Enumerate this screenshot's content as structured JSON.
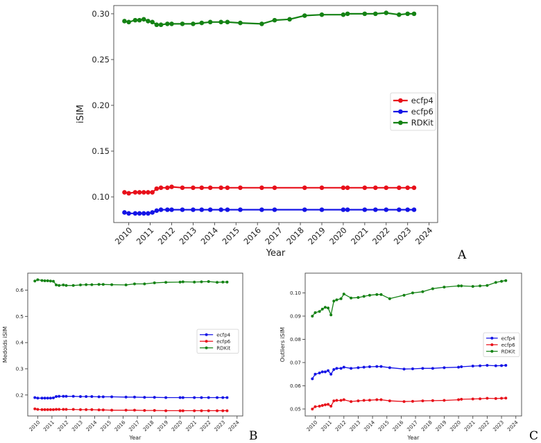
{
  "colors": {
    "red": "#e8101a",
    "blue": "#1414e6",
    "green": "#148214",
    "axis": "#444444"
  },
  "panel_letters": {
    "a": "A",
    "b": "B",
    "c": "C"
  },
  "chart_data": [
    {
      "id": "A",
      "type": "line",
      "xlabel": "Year",
      "ylabel": "iSIM",
      "xlim": [
        2009.3,
        2024.4
      ],
      "ylim": [
        0.072,
        0.309
      ],
      "xticks": [
        2010,
        2011,
        2012,
        2013,
        2014,
        2015,
        2016,
        2017,
        2018,
        2019,
        2020,
        2021,
        2022,
        2023,
        2024
      ],
      "xtick_labels": [
        "2010",
        "2011",
        "2012",
        "2013",
        "2014",
        "2015",
        "2016",
        "2017",
        "2018",
        "2019",
        "2020",
        "2021",
        "2022",
        "2023",
        "2024"
      ],
      "yticks": [
        0.1,
        0.15,
        0.2,
        0.25,
        0.3
      ],
      "ytick_labels": [
        "0.10",
        "0.15",
        "0.20",
        "0.25",
        "0.30"
      ],
      "legend": {
        "position": "right",
        "entries": [
          "ecfp4",
          "ecfp6",
          "RDKit"
        ]
      },
      "series": [
        {
          "name": "ecfp4",
          "color": "red",
          "x": [
            2009.8,
            2010.0,
            2010.3,
            2010.5,
            2010.7,
            2010.9,
            2011.1,
            2011.3,
            2011.5,
            2011.8,
            2012.0,
            2012.5,
            2013.0,
            2013.4,
            2013.8,
            2014.3,
            2014.6,
            2015.2,
            2016.2,
            2016.8,
            2018.2,
            2019.0,
            2020.0,
            2020.2,
            2021.0,
            2021.5,
            2022.0,
            2022.6,
            2023.0,
            2023.3
          ],
          "y": [
            0.105,
            0.104,
            0.105,
            0.105,
            0.105,
            0.105,
            0.105,
            0.109,
            0.11,
            0.11,
            0.111,
            0.11,
            0.11,
            0.11,
            0.11,
            0.11,
            0.11,
            0.11,
            0.11,
            0.11,
            0.11,
            0.11,
            0.11,
            0.11,
            0.11,
            0.11,
            0.11,
            0.11,
            0.11,
            0.11
          ]
        },
        {
          "name": "ecfp6",
          "color": "blue",
          "x": [
            2009.8,
            2010.0,
            2010.3,
            2010.5,
            2010.7,
            2010.9,
            2011.1,
            2011.3,
            2011.5,
            2011.8,
            2012.0,
            2012.5,
            2013.0,
            2013.4,
            2013.8,
            2014.3,
            2014.6,
            2015.2,
            2016.2,
            2016.8,
            2018.2,
            2019.0,
            2020.0,
            2020.2,
            2021.0,
            2021.5,
            2022.0,
            2022.6,
            2023.0,
            2023.3
          ],
          "y": [
            0.083,
            0.082,
            0.082,
            0.082,
            0.082,
            0.082,
            0.083,
            0.085,
            0.086,
            0.086,
            0.086,
            0.086,
            0.086,
            0.086,
            0.086,
            0.086,
            0.086,
            0.086,
            0.086,
            0.086,
            0.086,
            0.086,
            0.086,
            0.086,
            0.086,
            0.086,
            0.086,
            0.086,
            0.086,
            0.086
          ]
        },
        {
          "name": "RDKit",
          "color": "green",
          "x": [
            2009.8,
            2010.0,
            2010.3,
            2010.5,
            2010.7,
            2010.9,
            2011.1,
            2011.3,
            2011.5,
            2011.8,
            2012.0,
            2012.5,
            2013.0,
            2013.4,
            2013.8,
            2014.3,
            2014.6,
            2015.2,
            2016.2,
            2016.8,
            2017.5,
            2018.2,
            2019.0,
            2020.0,
            2020.2,
            2021.0,
            2021.5,
            2022.0,
            2022.6,
            2023.0,
            2023.3
          ],
          "y": [
            0.292,
            0.291,
            0.293,
            0.293,
            0.294,
            0.292,
            0.291,
            0.288,
            0.288,
            0.289,
            0.289,
            0.289,
            0.289,
            0.29,
            0.291,
            0.291,
            0.291,
            0.29,
            0.289,
            0.293,
            0.294,
            0.298,
            0.299,
            0.299,
            0.3,
            0.3,
            0.3,
            0.301,
            0.299,
            0.3,
            0.3
          ]
        }
      ]
    },
    {
      "id": "B",
      "type": "line",
      "xlabel": "Year",
      "ylabel": "Medoids iSIM",
      "xlim": [
        2009.3,
        2024.4
      ],
      "ylim": [
        0.12,
        0.665
      ],
      "xticks": [
        2010,
        2011,
        2012,
        2013,
        2014,
        2015,
        2016,
        2017,
        2018,
        2019,
        2020,
        2021,
        2022,
        2023,
        2024
      ],
      "xtick_labels": [
        "2010",
        "2011",
        "2012",
        "2013",
        "2014",
        "2015",
        "2016",
        "2017",
        "2018",
        "2019",
        "2020",
        "2021",
        "2022",
        "2023",
        "2024"
      ],
      "yticks": [
        0.2,
        0.3,
        0.4,
        0.5,
        0.6
      ],
      "ytick_labels": [
        "0.2",
        "0.3",
        "0.4",
        "0.5",
        "0.6"
      ],
      "legend": {
        "position": "right",
        "entries": [
          "ecfp4",
          "ecfp6",
          "RDKit"
        ]
      },
      "series": [
        {
          "name": "ecfp4",
          "color": "blue",
          "x": [
            2009.8,
            2010.0,
            2010.3,
            2010.5,
            2010.7,
            2010.9,
            2011.1,
            2011.3,
            2011.5,
            2011.8,
            2012.0,
            2012.5,
            2013.0,
            2013.4,
            2013.8,
            2014.3,
            2014.6,
            2015.2,
            2016.2,
            2016.8,
            2017.5,
            2018.2,
            2019.0,
            2020.0,
            2020.2,
            2021.0,
            2021.5,
            2022.0,
            2022.6,
            2023.0,
            2023.3
          ],
          "y": [
            0.19,
            0.188,
            0.188,
            0.188,
            0.188,
            0.188,
            0.189,
            0.194,
            0.195,
            0.195,
            0.195,
            0.195,
            0.194,
            0.194,
            0.194,
            0.193,
            0.193,
            0.193,
            0.192,
            0.192,
            0.191,
            0.191,
            0.19,
            0.19,
            0.19,
            0.19,
            0.19,
            0.19,
            0.19,
            0.19,
            0.19
          ]
        },
        {
          "name": "ecfp6",
          "color": "red",
          "x": [
            2009.8,
            2010.0,
            2010.3,
            2010.5,
            2010.7,
            2010.9,
            2011.1,
            2011.3,
            2011.5,
            2011.8,
            2012.0,
            2012.5,
            2013.0,
            2013.4,
            2013.8,
            2014.3,
            2014.6,
            2015.2,
            2016.2,
            2016.8,
            2017.5,
            2018.2,
            2019.0,
            2020.0,
            2020.2,
            2021.0,
            2021.5,
            2022.0,
            2022.6,
            2023.0,
            2023.3
          ],
          "y": [
            0.147,
            0.145,
            0.144,
            0.144,
            0.144,
            0.144,
            0.144,
            0.145,
            0.145,
            0.145,
            0.145,
            0.145,
            0.144,
            0.144,
            0.144,
            0.143,
            0.143,
            0.142,
            0.142,
            0.142,
            0.141,
            0.141,
            0.14,
            0.14,
            0.14,
            0.14,
            0.14,
            0.14,
            0.14,
            0.14,
            0.14
          ]
        },
        {
          "name": "RDKit",
          "color": "green",
          "x": [
            2009.8,
            2010.0,
            2010.3,
            2010.5,
            2010.7,
            2010.9,
            2011.1,
            2011.3,
            2011.5,
            2011.8,
            2012.0,
            2012.5,
            2013.0,
            2013.4,
            2013.8,
            2014.3,
            2014.6,
            2015.2,
            2016.2,
            2016.8,
            2017.5,
            2018.2,
            2019.0,
            2020.0,
            2020.2,
            2021.0,
            2021.5,
            2022.0,
            2022.6,
            2023.0,
            2023.3
          ],
          "y": [
            0.635,
            0.64,
            0.637,
            0.636,
            0.636,
            0.635,
            0.634,
            0.62,
            0.618,
            0.62,
            0.618,
            0.618,
            0.62,
            0.621,
            0.621,
            0.622,
            0.622,
            0.621,
            0.62,
            0.624,
            0.624,
            0.628,
            0.63,
            0.631,
            0.632,
            0.631,
            0.632,
            0.633,
            0.63,
            0.631,
            0.631
          ]
        }
      ]
    },
    {
      "id": "C",
      "type": "line",
      "xlabel": "Year",
      "ylabel": "Outliers iSIM",
      "xlim": [
        2009.3,
        2024.4
      ],
      "ylim": [
        0.047,
        0.1085
      ],
      "xticks": [
        2010,
        2011,
        2012,
        2013,
        2014,
        2015,
        2016,
        2017,
        2018,
        2019,
        2020,
        2021,
        2022,
        2023,
        2024
      ],
      "xtick_labels": [
        "2010",
        "2011",
        "2012",
        "2013",
        "2014",
        "2015",
        "2016",
        "2017",
        "2018",
        "2019",
        "2020",
        "2021",
        "2022",
        "2023",
        "2024"
      ],
      "yticks": [
        0.05,
        0.06,
        0.07,
        0.08,
        0.09,
        0.1
      ],
      "ytick_labels": [
        "0.05",
        "0.06",
        "0.07",
        "0.08",
        "0.09",
        "0.10"
      ],
      "legend": {
        "position": "right",
        "entries": [
          "ecfp4",
          "ecfp6",
          "RDKit"
        ]
      },
      "series": [
        {
          "name": "ecfp4",
          "color": "blue",
          "x": [
            2009.8,
            2010.0,
            2010.3,
            2010.5,
            2010.7,
            2010.9,
            2011.1,
            2011.3,
            2011.5,
            2011.8,
            2012.0,
            2012.5,
            2013.0,
            2013.4,
            2013.8,
            2014.3,
            2014.6,
            2015.2,
            2016.2,
            2016.8,
            2017.5,
            2018.2,
            2019.0,
            2020.0,
            2020.2,
            2021.0,
            2021.5,
            2022.0,
            2022.6,
            2023.0,
            2023.3
          ],
          "y": [
            0.063,
            0.065,
            0.0655,
            0.066,
            0.066,
            0.0665,
            0.065,
            0.067,
            0.0675,
            0.0675,
            0.068,
            0.0675,
            0.0678,
            0.068,
            0.0682,
            0.0683,
            0.0683,
            0.0678,
            0.0672,
            0.0673,
            0.0675,
            0.0675,
            0.0678,
            0.068,
            0.0682,
            0.0685,
            0.0686,
            0.0688,
            0.0686,
            0.0687,
            0.0688
          ]
        },
        {
          "name": "ecfp6",
          "color": "red",
          "x": [
            2009.8,
            2010.0,
            2010.3,
            2010.5,
            2010.7,
            2010.9,
            2011.1,
            2011.3,
            2011.5,
            2011.8,
            2012.0,
            2012.5,
            2013.0,
            2013.4,
            2013.8,
            2014.3,
            2014.6,
            2015.2,
            2016.2,
            2016.8,
            2017.5,
            2018.2,
            2019.0,
            2020.0,
            2020.2,
            2021.0,
            2021.5,
            2022.0,
            2022.6,
            2023.0,
            2023.3
          ],
          "y": [
            0.05,
            0.051,
            0.0512,
            0.0515,
            0.0518,
            0.052,
            0.0512,
            0.0535,
            0.0537,
            0.0537,
            0.054,
            0.0532,
            0.0535,
            0.0537,
            0.0538,
            0.054,
            0.054,
            0.0535,
            0.0532,
            0.0533,
            0.0535,
            0.0536,
            0.0537,
            0.054,
            0.0542,
            0.0543,
            0.0544,
            0.0546,
            0.0545,
            0.0546,
            0.0547
          ]
        },
        {
          "name": "RDKit",
          "color": "green",
          "x": [
            2009.8,
            2010.0,
            2010.3,
            2010.5,
            2010.7,
            2010.9,
            2011.1,
            2011.3,
            2011.5,
            2011.8,
            2012.0,
            2012.5,
            2013.0,
            2013.4,
            2013.8,
            2014.3,
            2014.6,
            2015.2,
            2016.2,
            2016.8,
            2017.5,
            2018.2,
            2019.0,
            2020.0,
            2020.2,
            2021.0,
            2021.5,
            2022.0,
            2022.6,
            2023.0,
            2023.3
          ],
          "y": [
            0.09,
            0.0915,
            0.092,
            0.093,
            0.0938,
            0.0935,
            0.0905,
            0.0965,
            0.097,
            0.0975,
            0.0995,
            0.0978,
            0.098,
            0.0985,
            0.099,
            0.0993,
            0.0993,
            0.0975,
            0.099,
            0.1,
            0.1005,
            0.1018,
            0.1025,
            0.103,
            0.103,
            0.1028,
            0.103,
            0.1032,
            0.1045,
            0.105,
            0.1053
          ]
        }
      ]
    }
  ]
}
